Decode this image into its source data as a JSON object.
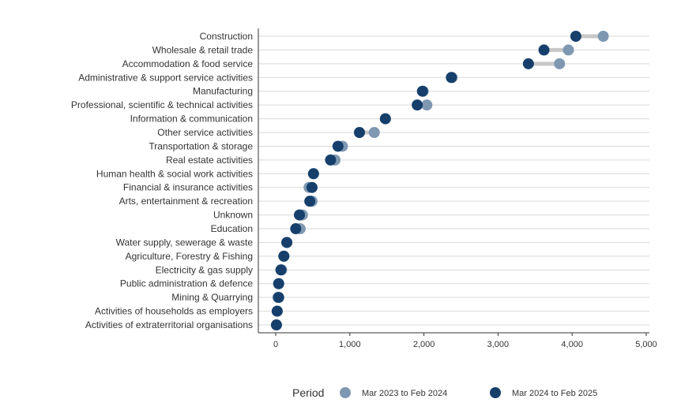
{
  "chart_data": {
    "type": "dumbbell",
    "xlim": [
      0,
      5000
    ],
    "x_ticks": [
      "0",
      "1,000",
      "2,000",
      "3,000",
      "4,000",
      "5,000"
    ],
    "x_tick_values": [
      0,
      1000,
      2000,
      3000,
      4000,
      5000
    ],
    "grid": "horizontal",
    "legend_position": "bottom",
    "legend_title": "Period",
    "colors": {
      "period_2023_24": "#7f98b2",
      "period_2024_25": "#16406b",
      "connector": "#c8c8c8",
      "grid": "#d9d9d9",
      "axis": "#333333"
    },
    "series": [
      {
        "name": "Mar 2023 to Feb 2024",
        "color": "#7f98b2",
        "values": [
          4420,
          3950,
          3830,
          2380,
          1990,
          2040,
          1480,
          1330,
          900,
          800,
          510,
          450,
          490,
          360,
          330,
          150,
          110,
          80,
          40,
          30,
          20,
          10
        ]
      },
      {
        "name": "Mar 2024 to Feb 2025",
        "color": "#16406b",
        "values": [
          4050,
          3620,
          3410,
          2370,
          1980,
          1910,
          1480,
          1130,
          840,
          740,
          510,
          490,
          460,
          320,
          270,
          150,
          110,
          70,
          40,
          40,
          20,
          10
        ]
      }
    ],
    "categories": [
      "Construction",
      "Wholesale & retail trade",
      "Accommodation & food service",
      "Administrative & support service activities",
      "Manufacturing",
      "Professional, scientific & technical activities",
      "Information & communication",
      "Other service activities",
      "Transportation & storage",
      "Real estate activities",
      "Human health & social work activities",
      "Financial & insurance activities",
      "Arts, entertainment & recreation",
      "Unknown",
      "Education",
      "Water supply, sewerage & waste",
      "Agriculture, Forestry & Fishing",
      "Electricity & gas supply",
      "Public administration & defence",
      "Mining & Quarrying",
      "Activities of households as employers",
      "Activities of extraterritorial organisations"
    ]
  }
}
